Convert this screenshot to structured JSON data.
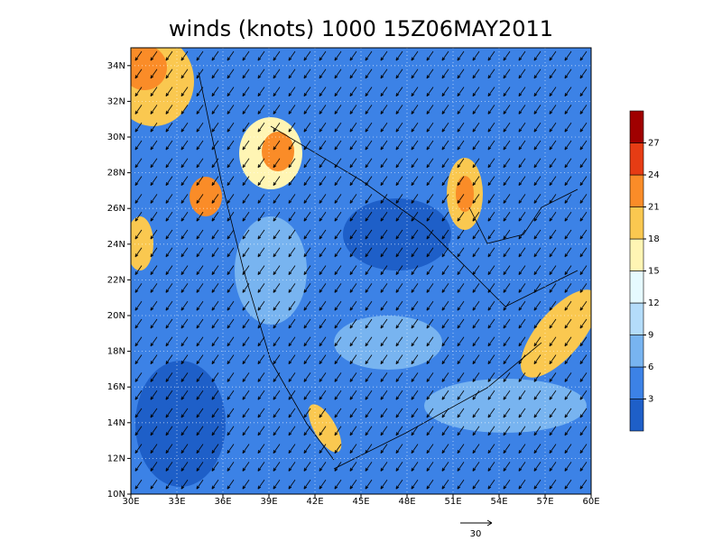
{
  "map": {
    "title": "winds (knots) 1000 15Z06MAY2011",
    "xlim": [
      30,
      60
    ],
    "ylim": [
      10,
      35
    ],
    "xticks": [
      {
        "value": 30,
        "label": "30E"
      },
      {
        "value": 33,
        "label": "33E"
      },
      {
        "value": 36,
        "label": "36E"
      },
      {
        "value": 39,
        "label": "39E"
      },
      {
        "value": 42,
        "label": "42E"
      },
      {
        "value": 45,
        "label": "45E"
      },
      {
        "value": 48,
        "label": "48E"
      },
      {
        "value": 51,
        "label": "51E"
      },
      {
        "value": 54,
        "label": "54E"
      },
      {
        "value": 57,
        "label": "57E"
      },
      {
        "value": 60,
        "label": "60E"
      }
    ],
    "yticks": [
      {
        "value": 10,
        "label": "10N"
      },
      {
        "value": 12,
        "label": "12N"
      },
      {
        "value": 14,
        "label": "14N"
      },
      {
        "value": 16,
        "label": "16N"
      },
      {
        "value": 18,
        "label": "18N"
      },
      {
        "value": 20,
        "label": "20N"
      },
      {
        "value": 22,
        "label": "22N"
      },
      {
        "value": 24,
        "label": "24N"
      },
      {
        "value": 26,
        "label": "26N"
      },
      {
        "value": 28,
        "label": "28N"
      },
      {
        "value": 30,
        "label": "30N"
      },
      {
        "value": 32,
        "label": "32N"
      },
      {
        "value": 34,
        "label": "34N"
      }
    ],
    "colorbar": {
      "clim": [
        0,
        30
      ],
      "levels": [
        3,
        6,
        9,
        12,
        15,
        18,
        21,
        24,
        27
      ],
      "colors": [
        "#1e5fc8",
        "#3c82e6",
        "#78b4f0",
        "#b4dcfa",
        "#e6faff",
        "#fff5b4",
        "#fac850",
        "#fa8c28",
        "#e63c14",
        "#a00000"
      ]
    },
    "reference_vector": "30"
  }
}
